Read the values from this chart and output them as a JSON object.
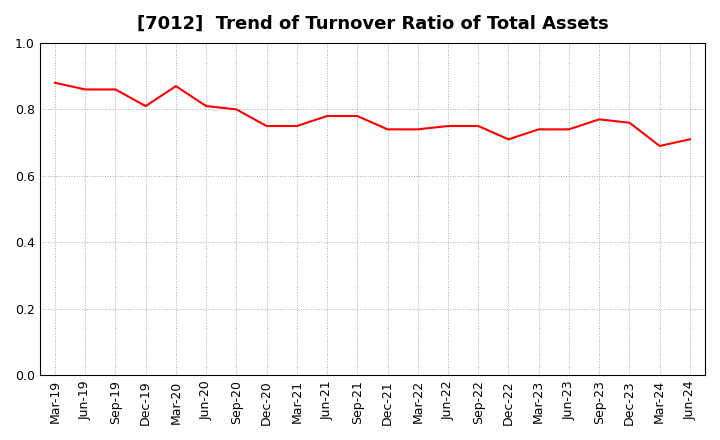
{
  "title": "[7012]  Trend of Turnover Ratio of Total Assets",
  "labels": [
    "Mar-19",
    "Jun-19",
    "Sep-19",
    "Dec-19",
    "Mar-20",
    "Jun-20",
    "Sep-20",
    "Dec-20",
    "Mar-21",
    "Jun-21",
    "Sep-21",
    "Dec-21",
    "Mar-22",
    "Jun-22",
    "Sep-22",
    "Dec-22",
    "Mar-23",
    "Jun-23",
    "Sep-23",
    "Dec-23",
    "Mar-24",
    "Jun-24"
  ],
  "values": [
    0.88,
    0.86,
    0.86,
    0.81,
    0.87,
    0.81,
    0.8,
    0.75,
    0.75,
    0.78,
    0.78,
    0.74,
    0.74,
    0.75,
    0.75,
    0.71,
    0.74,
    0.74,
    0.77,
    0.76,
    0.69,
    0.71
  ],
  "line_color": "#ff0000",
  "line_width": 1.5,
  "ylim": [
    0.0,
    1.0
  ],
  "yticks": [
    0.0,
    0.2,
    0.4,
    0.6,
    0.8,
    1.0
  ],
  "background_color": "#ffffff",
  "grid_color": "#aaaaaa",
  "title_fontsize": 13,
  "tick_fontsize": 9
}
